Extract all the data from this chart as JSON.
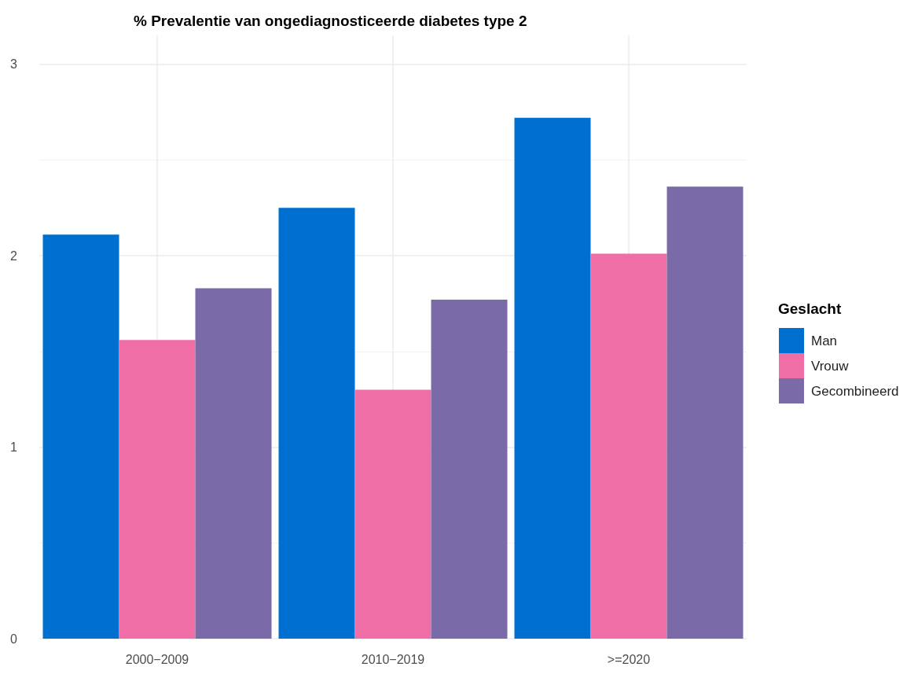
{
  "chart_data": {
    "type": "bar",
    "title": "% Prevalentie van ongediagnosticeerde diabetes type 2",
    "legend_title": "Geslacht",
    "categories": [
      "2000−2009",
      "2010−2019",
      ">=2020"
    ],
    "series": [
      {
        "name": "Man",
        "color": "#0070d0",
        "values": [
          2.11,
          2.25,
          2.72
        ]
      },
      {
        "name": "Vrouw",
        "color": "#f06ea6",
        "values": [
          1.56,
          1.3,
          2.01
        ]
      },
      {
        "name": "Gecombineerd",
        "color": "#7a6aa8",
        "values": [
          1.83,
          1.77,
          2.36
        ]
      }
    ],
    "ylim": [
      0,
      3.15
    ],
    "yticks": [
      0,
      1,
      2,
      3
    ],
    "grid": true,
    "legend": "right"
  }
}
